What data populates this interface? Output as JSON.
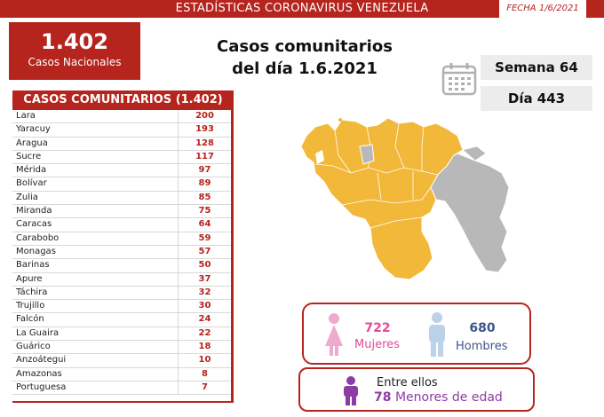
{
  "header": {
    "title": "ESTADÍSTICAS CORONAVIRUS VENEZUELA",
    "date": "FECHA 1/6/2021"
  },
  "total": {
    "number": "1.402",
    "label": "Casos Nacionales"
  },
  "headline": {
    "line1": "Casos comunitarios",
    "line2": "del día 1.6.2021"
  },
  "calendar": {
    "week": "Semana 64",
    "day": "Día 443",
    "icon": "calendar-icon"
  },
  "table": {
    "header": "CASOS COMUNITARIOS (1.402)",
    "rows": [
      {
        "state": "Lara",
        "cases": "200"
      },
      {
        "state": "Yaracuy",
        "cases": "193"
      },
      {
        "state": "Aragua",
        "cases": "128"
      },
      {
        "state": "Sucre",
        "cases": "117"
      },
      {
        "state": "Mérida",
        "cases": "97"
      },
      {
        "state": "Bolívar",
        "cases": "89"
      },
      {
        "state": "Zulia",
        "cases": "85"
      },
      {
        "state": "Miranda",
        "cases": "75"
      },
      {
        "state": "Caracas",
        "cases": "64"
      },
      {
        "state": "Carabobo",
        "cases": "59"
      },
      {
        "state": "Monagas",
        "cases": "57"
      },
      {
        "state": "Barinas",
        "cases": "50"
      },
      {
        "state": "Apure",
        "cases": "37"
      },
      {
        "state": "Táchira",
        "cases": "32"
      },
      {
        "state": "Trujillo",
        "cases": "30"
      },
      {
        "state": "Falcón",
        "cases": "24"
      },
      {
        "state": "La Guaira",
        "cases": "22"
      },
      {
        "state": "Guárico",
        "cases": "18"
      },
      {
        "state": "Anzoátegui",
        "cases": "10"
      },
      {
        "state": "Amazonas",
        "cases": "8"
      },
      {
        "state": "Portuguesa",
        "cases": "7"
      }
    ]
  },
  "gender": {
    "women_count": "722",
    "women_label": "Mujeres",
    "men_count": "680",
    "men_label": "Hombres"
  },
  "minors": {
    "prefix": "Entre ellos",
    "count": "78",
    "label": "Menores de edad"
  },
  "colors": {
    "brand_red": "#b5241d",
    "map_yellow": "#f2b83a",
    "map_gray": "#b8b8b8",
    "women_pink": "#e24d96",
    "men_blue": "#3f5488",
    "minors_purple": "#8e3ca5"
  }
}
